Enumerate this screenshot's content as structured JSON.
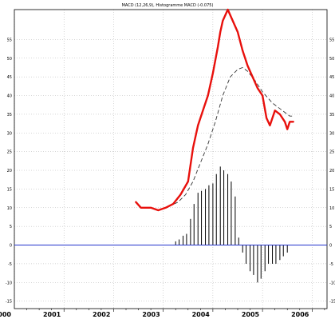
{
  "chart_data": {
    "type": "line",
    "title": "MACD (12,26,9), Histogramme MACD (-0.075)",
    "xlabel": "",
    "ylabel": "",
    "x_ticks": [
      "2000",
      "2001",
      "2002",
      "2003",
      "2004",
      "2005",
      "2006"
    ],
    "xlim": [
      2000,
      2006.3
    ],
    "y_ticks": [
      55,
      50,
      45,
      40,
      35,
      30,
      25,
      20,
      15,
      10,
      5,
      0,
      -5,
      -10,
      -15
    ],
    "ylim": [
      -17,
      63
    ],
    "grid": true,
    "colors": {
      "macd": "#e8100c",
      "signal": "#333333",
      "histogram": "#000000",
      "zero_line": "#2233cc",
      "grid": "#999999"
    },
    "macd_line": {
      "x": [
        2002.45,
        2002.55,
        2002.65,
        2002.75,
        2002.9,
        2003.05,
        2003.2,
        2003.35,
        2003.5,
        2003.6,
        2003.7,
        2003.8,
        2003.9,
        2004.0,
        2004.1,
        2004.15,
        2004.2,
        2004.3,
        2004.4,
        2004.5,
        2004.6,
        2004.7,
        2004.8,
        2004.9,
        2005.0,
        2005.08,
        2005.15,
        2005.25,
        2005.35,
        2005.45,
        2005.5,
        2005.55,
        2005.62
      ],
      "y": [
        11.5,
        10,
        10,
        10,
        9.3,
        10,
        11,
        13.5,
        17,
        26,
        32,
        36,
        40,
        46,
        53,
        57,
        60,
        63,
        60,
        57,
        52,
        48,
        45,
        42,
        40,
        34,
        32,
        36,
        35,
        33,
        31,
        33,
        33
      ]
    },
    "signal_line": {
      "x": [
        2003.1,
        2003.3,
        2003.45,
        2003.6,
        2003.75,
        2003.9,
        2004.05,
        2004.2,
        2004.35,
        2004.5,
        2004.6,
        2004.7,
        2004.85,
        2005.0,
        2005.2,
        2005.4,
        2005.55,
        2005.62
      ],
      "y": [
        10.3,
        11.5,
        13.5,
        17,
        22,
        27,
        33,
        40,
        45,
        47,
        47.5,
        46.5,
        44,
        41,
        38,
        36,
        34.5,
        34.5
      ]
    },
    "histogram": {
      "x": [
        2003.25,
        2003.32,
        2003.4,
        2003.47,
        2003.55,
        2003.62,
        2003.7,
        2003.77,
        2003.85,
        2003.92,
        2004.0,
        2004.07,
        2004.15,
        2004.22,
        2004.3,
        2004.37,
        2004.45,
        2004.52,
        2004.6,
        2004.67,
        2004.75,
        2004.82,
        2004.9,
        2004.97,
        2005.05,
        2005.12,
        2005.2,
        2005.27,
        2005.35,
        2005.42,
        2005.5
      ],
      "y": [
        1,
        1.5,
        2.5,
        3,
        7,
        11,
        14,
        14.5,
        15,
        16,
        16.5,
        19,
        21,
        20,
        19,
        17,
        13,
        2,
        -2,
        -5,
        -7,
        -8,
        -10,
        -9,
        -7,
        -5,
        -5,
        -5,
        -4,
        -3,
        -2
      ]
    }
  }
}
